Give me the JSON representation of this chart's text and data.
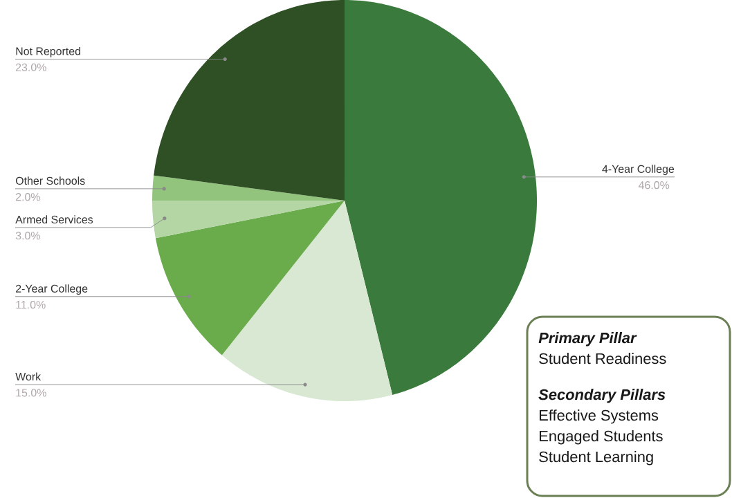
{
  "chart_data": {
    "type": "pie",
    "categories": [
      "4-Year College",
      "Work",
      "2-Year College",
      "Armed Services",
      "Other Schools",
      "Not Reported"
    ],
    "values": [
      46,
      15,
      11,
      3,
      2,
      23
    ],
    "value_labels": [
      "46.0%",
      "15.0%",
      "11.0%",
      "3.0%",
      "2.0%",
      "23.0%"
    ],
    "colors": [
      "#3a7a3c",
      "#d9e8d3",
      "#6aab4c",
      "#b4d6a4",
      "#93c47d",
      "#2f5024"
    ],
    "annotations": [
      "Primary Pillar",
      "Student Readiness",
      "Secondary Pillars",
      "Effective Systems",
      "Engaged Students",
      "Student Learning"
    ]
  }
}
